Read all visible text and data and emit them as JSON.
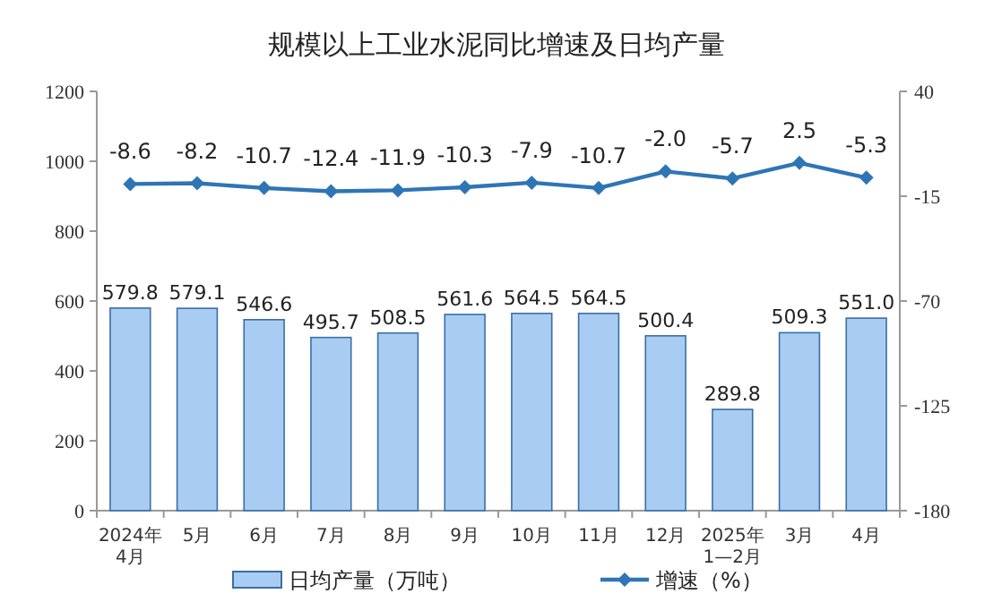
{
  "chart_data": {
    "type": "bar",
    "title": "规模以上工业水泥同比增速及日均产量",
    "categories": [
      "2024年\n4月",
      "5月",
      "6月",
      "7月",
      "8月",
      "9月",
      "10月",
      "11月",
      "12月",
      "2025年\n1—2月",
      "3月",
      "4月"
    ],
    "series": [
      {
        "name": "日均产量（万吨）",
        "color": "#a9cdf2",
        "values": [
          579.8,
          579.1,
          546.6,
          495.7,
          508.5,
          561.6,
          564.5,
          564.5,
          500.4,
          289.8,
          509.3,
          551.0
        ],
        "value_labels": [
          "579.8",
          "579.1",
          "546.6",
          "495.7",
          "508.5",
          "561.6",
          "564.5",
          "564.5",
          "500.4",
          "289.8",
          "509.3",
          "551.0"
        ]
      },
      {
        "name": "增速（%）",
        "type": "line",
        "axis": "y2",
        "color": "#2e75b6",
        "marker": "diamond",
        "values": [
          -8.6,
          -8.2,
          -10.7,
          -12.4,
          -11.9,
          -10.3,
          -7.9,
          -10.7,
          -2.0,
          -5.7,
          2.5,
          -5.3
        ],
        "value_labels": [
          "-8.6",
          "-8.2",
          "-10.7",
          "-12.4",
          "-11.9",
          "-10.3",
          "-7.9",
          "-10.7",
          "-2.0",
          "-5.7",
          "2.5",
          "-5.3"
        ]
      }
    ],
    "ylim": [
      0,
      1200
    ],
    "yticks": [
      0,
      200,
      400,
      600,
      800,
      1000,
      1200
    ],
    "y2lim": [
      -180,
      40
    ],
    "y2ticks": [
      -180,
      -125,
      -70,
      -15,
      40
    ],
    "legend": "bottom"
  }
}
